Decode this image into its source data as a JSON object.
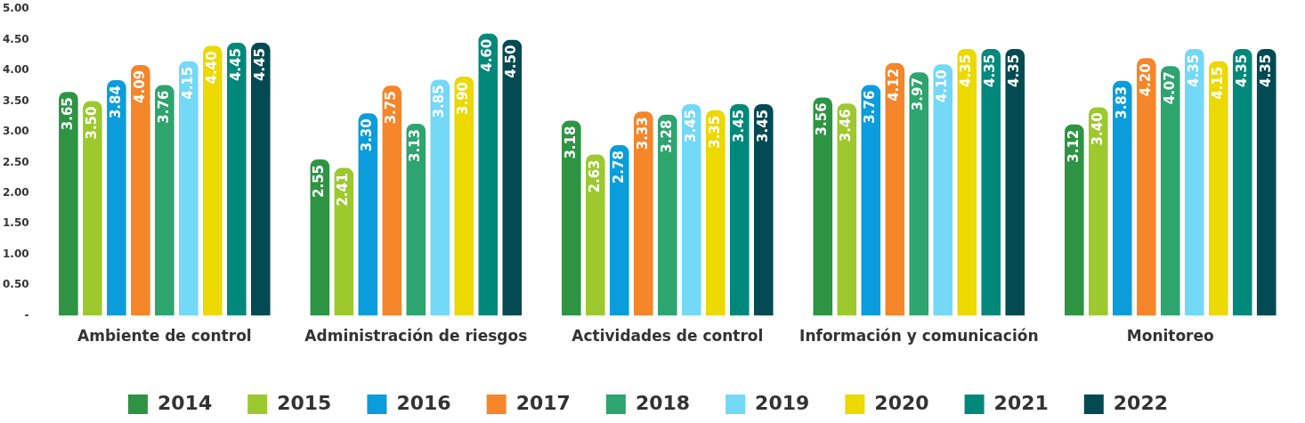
{
  "chart_data": {
    "type": "bar",
    "categories": [
      "Ambiente de control",
      "Administración de riesgos",
      "Actividades de control",
      "Información y comunicación",
      "Monitoreo"
    ],
    "series": [
      {
        "name": "2014",
        "color": "#2e9444",
        "values": [
          3.65,
          2.55,
          3.18,
          3.56,
          3.12
        ],
        "value_labels": [
          "3.65",
          "2.55",
          "3.18",
          "3.56",
          "3.12"
        ]
      },
      {
        "name": "2015",
        "color": "#9dc92f",
        "values": [
          3.5,
          2.41,
          2.63,
          3.46,
          3.4
        ],
        "value_labels": [
          "3.50",
          "2.41",
          "2.63",
          "3.46",
          "3.40"
        ]
      },
      {
        "name": "2016",
        "color": "#0b9ddb",
        "values": [
          3.84,
          3.3,
          2.78,
          3.76,
          3.83
        ],
        "value_labels": [
          "3.84",
          "3.30",
          "2.78",
          "3.76",
          "3.83"
        ]
      },
      {
        "name": "2017",
        "color": "#f5862a",
        "values": [
          4.09,
          3.75,
          3.33,
          4.12,
          4.2
        ],
        "value_labels": [
          "4.09",
          "3.75",
          "3.33",
          "4.12",
          "4.20"
        ]
      },
      {
        "name": "2018",
        "color": "#2ea46e",
        "values": [
          3.76,
          3.13,
          3.28,
          3.97,
          4.07
        ],
        "value_labels": [
          "3.76",
          "3.13",
          "3.28",
          "3.97",
          "4.07"
        ]
      },
      {
        "name": "2019",
        "color": "#74d8f7",
        "values": [
          4.15,
          3.85,
          3.45,
          4.1,
          4.35
        ],
        "value_labels": [
          "4.15",
          "3.85",
          "3.45",
          "4.10",
          "4.35"
        ]
      },
      {
        "name": "2020",
        "color": "#ecd900",
        "values": [
          4.4,
          3.9,
          3.35,
          4.35,
          4.15
        ],
        "value_labels": [
          "4.40",
          "3.90",
          "3.35",
          "4.35",
          "4.15"
        ]
      },
      {
        "name": "2021",
        "color": "#00897b",
        "values": [
          4.45,
          4.6,
          3.45,
          4.35,
          4.35
        ],
        "value_labels": [
          "4.45",
          "4.60",
          "3.45",
          "4.35",
          "4.35"
        ]
      },
      {
        "name": "2022",
        "color": "#034a52",
        "values": [
          4.45,
          4.5,
          3.45,
          4.35,
          4.35
        ],
        "value_labels": [
          "4.45",
          "4.50",
          "3.45",
          "4.35",
          "4.35"
        ]
      }
    ],
    "ylim": [
      0,
      5
    ],
    "yticks": [
      {
        "value": 0,
        "label": "-"
      },
      {
        "value": 0.5,
        "label": "0.50"
      },
      {
        "value": 1,
        "label": "1.00"
      },
      {
        "value": 1.5,
        "label": "1.50"
      },
      {
        "value": 2,
        "label": "2.00"
      },
      {
        "value": 2.5,
        "label": "2.50"
      },
      {
        "value": 3,
        "label": "3.00"
      },
      {
        "value": 3.5,
        "label": "3.50"
      },
      {
        "value": 4,
        "label": "4.00"
      },
      {
        "value": 4.5,
        "label": "4.50"
      },
      {
        "value": 5,
        "label": "5.00"
      }
    ],
    "grid": false,
    "legend": "bottom"
  }
}
